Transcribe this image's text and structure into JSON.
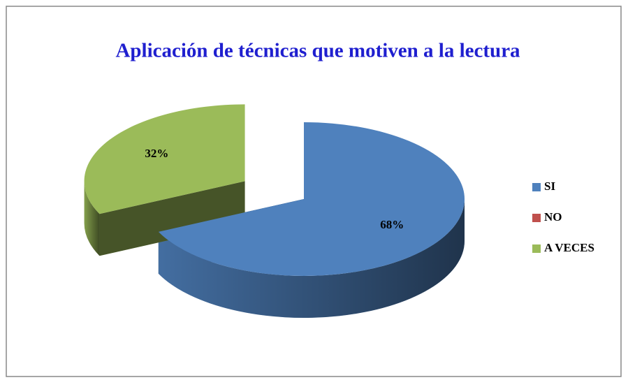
{
  "chart_data": {
    "type": "pie",
    "title": "Aplicación de técnicas que motiven a la lectura",
    "categories": [
      "SI",
      "NO",
      "A VECES"
    ],
    "values": [
      68,
      0,
      32
    ],
    "value_labels": [
      "68%",
      null,
      "32%"
    ],
    "colors": [
      "#4f81bd",
      "#c0504d",
      "#9bbb59"
    ],
    "exploded": [
      false,
      false,
      true
    ],
    "legend": "right"
  }
}
